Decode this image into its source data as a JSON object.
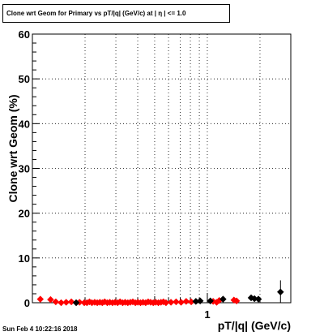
{
  "title": "Clone wrt Geom for Primary vs pT/|q| (GeV/c) at |  η | <= 1.0",
  "footer": "Sun Feb  4 10:22:16 2018",
  "chart_data": {
    "type": "scatter",
    "xlabel": "pT/|q| (GeV/c)",
    "ylabel": "Clone wrt Geom (%)",
    "x_scale": "log",
    "xlim": [
      0.1,
      3.0
    ],
    "ylim": [
      0,
      60
    ],
    "y_ticks": [
      0,
      10,
      20,
      30,
      40,
      50,
      60
    ],
    "x_tick_labels": [
      {
        "value": 1,
        "label": "1"
      }
    ],
    "grid": true,
    "series": [
      {
        "color": "#ff0000",
        "marker": "diamond",
        "points": [
          {
            "x": 0.111,
            "y": 0.8
          },
          {
            "x": 0.127,
            "y": 0.7
          },
          {
            "x": 0.136,
            "y": 0.2
          },
          {
            "x": 0.146,
            "y": 0.0
          },
          {
            "x": 0.156,
            "y": 0.1
          },
          {
            "x": 0.167,
            "y": 0.2
          },
          {
            "x": 0.186,
            "y": 0.1
          },
          {
            "x": 0.198,
            "y": 0.0
          },
          {
            "x": 0.205,
            "y": 0.0
          },
          {
            "x": 0.212,
            "y": 0.2
          },
          {
            "x": 0.219,
            "y": 0.0
          },
          {
            "x": 0.227,
            "y": 0.1
          },
          {
            "x": 0.235,
            "y": 0.0
          },
          {
            "x": 0.243,
            "y": 0.1
          },
          {
            "x": 0.251,
            "y": 0.0
          },
          {
            "x": 0.259,
            "y": 0.2
          },
          {
            "x": 0.268,
            "y": 0.0
          },
          {
            "x": 0.277,
            "y": 0.1
          },
          {
            "x": 0.287,
            "y": 0.0
          },
          {
            "x": 0.297,
            "y": 0.1
          },
          {
            "x": 0.307,
            "y": 0.0
          },
          {
            "x": 0.317,
            "y": 0.2
          },
          {
            "x": 0.328,
            "y": 0.0
          },
          {
            "x": 0.339,
            "y": 0.1
          },
          {
            "x": 0.351,
            "y": 0.0
          },
          {
            "x": 0.363,
            "y": 0.1
          },
          {
            "x": 0.375,
            "y": 0.2
          },
          {
            "x": 0.388,
            "y": 0.0
          },
          {
            "x": 0.401,
            "y": 0.1
          },
          {
            "x": 0.415,
            "y": 0.0
          },
          {
            "x": 0.429,
            "y": 0.1
          },
          {
            "x": 0.444,
            "y": 0.0
          },
          {
            "x": 0.459,
            "y": 0.2
          },
          {
            "x": 0.474,
            "y": 0.1
          },
          {
            "x": 0.491,
            "y": 0.0
          },
          {
            "x": 0.507,
            "y": 0.1
          },
          {
            "x": 0.525,
            "y": 0.0
          },
          {
            "x": 0.543,
            "y": 0.1
          },
          {
            "x": 0.561,
            "y": 0.2
          },
          {
            "x": 0.58,
            "y": 0.0
          },
          {
            "x": 0.62,
            "y": 0.1
          },
          {
            "x": 0.663,
            "y": 0.2
          },
          {
            "x": 0.708,
            "y": 0.1
          },
          {
            "x": 0.757,
            "y": 0.3
          },
          {
            "x": 0.809,
            "y": 0.2
          },
          {
            "x": 1.08,
            "y": 0.3
          },
          {
            "x": 1.13,
            "y": 0.1
          },
          {
            "x": 1.17,
            "y": 0.5
          },
          {
            "x": 1.42,
            "y": 0.6
          },
          {
            "x": 1.47,
            "y": 0.4
          }
        ]
      },
      {
        "color": "#000000",
        "marker": "diamond",
        "points": [
          {
            "x": 0.178,
            "y": 0.0
          },
          {
            "x": 0.86,
            "y": 0.3
          },
          {
            "x": 0.91,
            "y": 0.4
          },
          {
            "x": 1.04,
            "y": 0.4
          },
          {
            "x": 1.23,
            "y": 0.8
          },
          {
            "x": 1.78,
            "y": 1.1
          },
          {
            "x": 1.86,
            "y": 0.9
          },
          {
            "x": 1.96,
            "y": 0.8
          },
          {
            "x": 2.62,
            "y": 2.4
          }
        ],
        "errors": [
          0,
          0,
          0,
          0,
          0,
          0.5,
          0.4,
          0.3,
          2.6
        ]
      }
    ]
  }
}
